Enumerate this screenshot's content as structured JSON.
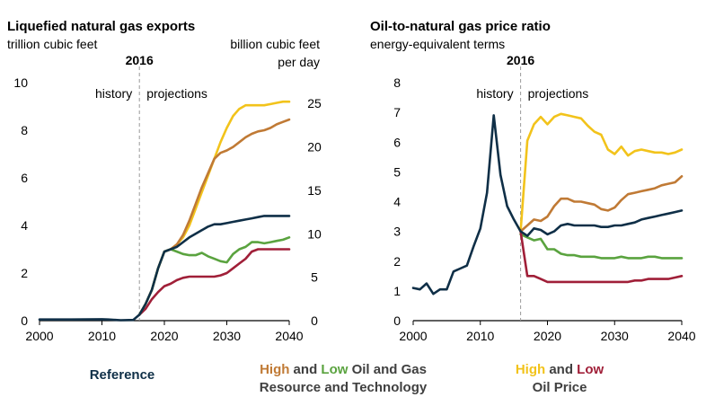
{
  "colors": {
    "reference": "#0f2f47",
    "high_resource": "#c07a35",
    "low_resource": "#5aa33f",
    "high_price": "#f2c31b",
    "low_price": "#a01f38",
    "divider": "#9a9a9a",
    "axis": "#000000"
  },
  "legend": {
    "reference": "Reference",
    "resource_high": "High",
    "resource_and": " and ",
    "resource_low": "Low",
    "resource_rest": " Oil and Gas",
    "resource_line2": "Resource and Technology",
    "price_high": "High",
    "price_and": " and ",
    "price_low": "Low",
    "price_line2": "Oil Price"
  },
  "chart_data": [
    {
      "type": "line",
      "title": "Liquefied natural gas exports",
      "ylabel": "trillion cubic feet",
      "ylabel_right": [
        "billion cubic feet",
        "per day"
      ],
      "x_ticks": [
        2000,
        2010,
        2020,
        2030,
        2040
      ],
      "xlim": [
        2000,
        2040
      ],
      "ylim": [
        0,
        10
      ],
      "y_ticks": [
        0,
        2,
        4,
        6,
        8,
        10
      ],
      "ylim_right": [
        0,
        27.4
      ],
      "y_ticks_right": [
        0,
        5,
        10,
        15,
        20,
        25
      ],
      "divider": {
        "year": 2016,
        "label": "2016",
        "left_label": "history",
        "right_label": "projections"
      },
      "series": [
        {
          "name": "Reference",
          "key": "reference",
          "x": [
            2000,
            2005,
            2010,
            2011,
            2013,
            2015,
            2016,
            2017,
            2018,
            2019,
            2020,
            2021,
            2022,
            2023,
            2024,
            2025,
            2026,
            2027,
            2028,
            2029,
            2030,
            2031,
            2032,
            2033,
            2034,
            2035,
            2036,
            2037,
            2038,
            2039,
            2040
          ],
          "y": [
            0.05,
            0.05,
            0.06,
            0.05,
            0.02,
            0.03,
            0.25,
            0.7,
            1.3,
            2.2,
            2.9,
            3.0,
            3.1,
            3.3,
            3.5,
            3.65,
            3.8,
            3.95,
            4.05,
            4.05,
            4.1,
            4.15,
            4.2,
            4.25,
            4.3,
            4.35,
            4.4,
            4.4,
            4.4,
            4.4,
            4.4
          ]
        },
        {
          "name": "High Oil and Gas Resource and Technology",
          "key": "high_resource",
          "x": [
            2016,
            2017,
            2018,
            2019,
            2020,
            2021,
            2022,
            2023,
            2024,
            2025,
            2026,
            2027,
            2028,
            2029,
            2030,
            2031,
            2032,
            2033,
            2034,
            2035,
            2036,
            2037,
            2038,
            2039,
            2040
          ],
          "y": [
            0.25,
            0.7,
            1.3,
            2.2,
            2.9,
            3.0,
            3.2,
            3.6,
            4.2,
            4.9,
            5.6,
            6.2,
            6.8,
            7.05,
            7.15,
            7.3,
            7.5,
            7.7,
            7.85,
            7.95,
            8.0,
            8.1,
            8.25,
            8.35,
            8.45
          ]
        },
        {
          "name": "Low Oil and Gas Resource and Technology",
          "key": "low_resource",
          "x": [
            2016,
            2017,
            2018,
            2019,
            2020,
            2021,
            2022,
            2023,
            2024,
            2025,
            2026,
            2027,
            2028,
            2029,
            2030,
            2031,
            2032,
            2033,
            2034,
            2035,
            2036,
            2037,
            2038,
            2039,
            2040
          ],
          "y": [
            0.25,
            0.7,
            1.3,
            2.2,
            2.9,
            3.0,
            2.9,
            2.8,
            2.75,
            2.75,
            2.85,
            2.7,
            2.6,
            2.5,
            2.45,
            2.8,
            3.0,
            3.1,
            3.3,
            3.3,
            3.25,
            3.3,
            3.35,
            3.4,
            3.5
          ]
        },
        {
          "name": "High Oil Price",
          "key": "high_price",
          "x": [
            2016,
            2017,
            2018,
            2019,
            2020,
            2021,
            2022,
            2023,
            2024,
            2025,
            2026,
            2027,
            2028,
            2029,
            2030,
            2031,
            2032,
            2033,
            2034,
            2035,
            2036,
            2037,
            2038,
            2039,
            2040
          ],
          "y": [
            0.25,
            0.7,
            1.3,
            2.2,
            2.9,
            3.0,
            3.2,
            3.5,
            4.0,
            4.7,
            5.4,
            6.1,
            6.8,
            7.5,
            8.1,
            8.6,
            8.9,
            9.05,
            9.05,
            9.05,
            9.05,
            9.1,
            9.15,
            9.2,
            9.2
          ]
        },
        {
          "name": "Low Oil Price",
          "key": "low_price",
          "x": [
            2016,
            2017,
            2018,
            2019,
            2020,
            2021,
            2022,
            2023,
            2024,
            2025,
            2026,
            2027,
            2028,
            2029,
            2030,
            2031,
            2032,
            2033,
            2034,
            2035,
            2036,
            2037,
            2038,
            2039,
            2040
          ],
          "y": [
            0.25,
            0.5,
            0.9,
            1.2,
            1.45,
            1.55,
            1.7,
            1.8,
            1.85,
            1.85,
            1.85,
            1.85,
            1.85,
            1.9,
            2.0,
            2.2,
            2.4,
            2.6,
            2.9,
            3.0,
            3.0,
            3.0,
            3.0,
            3.0,
            3.0
          ]
        }
      ]
    },
    {
      "type": "line",
      "title": "Oil-to-natural gas price ratio",
      "ylabel": "energy-equivalent terms",
      "x_ticks": [
        2000,
        2010,
        2020,
        2030,
        2040
      ],
      "xlim": [
        2000,
        2040
      ],
      "ylim": [
        0,
        8
      ],
      "y_ticks": [
        0,
        1,
        2,
        3,
        4,
        5,
        6,
        7,
        8
      ],
      "divider": {
        "year": 2016,
        "label": "2016",
        "left_label": "history",
        "right_label": "projections"
      },
      "series": [
        {
          "name": "Reference",
          "key": "reference",
          "x": [
            2000,
            2001,
            2002,
            2003,
            2004,
            2005,
            2006,
            2007,
            2008,
            2009,
            2010,
            2011,
            2012,
            2013,
            2014,
            2015,
            2016,
            2017,
            2018,
            2019,
            2020,
            2021,
            2022,
            2023,
            2024,
            2025,
            2026,
            2027,
            2028,
            2029,
            2030,
            2031,
            2032,
            2033,
            2034,
            2035,
            2036,
            2037,
            2038,
            2039,
            2040
          ],
          "y": [
            1.1,
            1.05,
            1.25,
            0.9,
            1.05,
            1.05,
            1.65,
            1.75,
            1.85,
            2.5,
            3.1,
            4.3,
            6.9,
            4.9,
            3.85,
            3.4,
            3.0,
            2.85,
            3.1,
            3.05,
            2.9,
            3.0,
            3.2,
            3.25,
            3.2,
            3.2,
            3.2,
            3.2,
            3.15,
            3.15,
            3.2,
            3.2,
            3.25,
            3.3,
            3.4,
            3.45,
            3.5,
            3.55,
            3.6,
            3.65,
            3.7
          ]
        },
        {
          "name": "High Oil and Gas Resource and Technology",
          "key": "high_resource",
          "x": [
            2016,
            2017,
            2018,
            2019,
            2020,
            2021,
            2022,
            2023,
            2024,
            2025,
            2026,
            2027,
            2028,
            2029,
            2030,
            2031,
            2032,
            2033,
            2034,
            2035,
            2036,
            2037,
            2038,
            2039,
            2040
          ],
          "y": [
            3.0,
            3.2,
            3.4,
            3.35,
            3.5,
            3.85,
            4.1,
            4.1,
            4.0,
            4.0,
            3.95,
            3.9,
            3.75,
            3.7,
            3.8,
            4.05,
            4.25,
            4.3,
            4.35,
            4.4,
            4.45,
            4.55,
            4.6,
            4.65,
            4.85
          ]
        },
        {
          "name": "Low Oil and Gas Resource and Technology",
          "key": "low_resource",
          "x": [
            2016,
            2017,
            2018,
            2019,
            2020,
            2021,
            2022,
            2023,
            2024,
            2025,
            2026,
            2027,
            2028,
            2029,
            2030,
            2031,
            2032,
            2033,
            2034,
            2035,
            2036,
            2037,
            2038,
            2039,
            2040
          ],
          "y": [
            2.9,
            2.8,
            2.7,
            2.75,
            2.4,
            2.4,
            2.25,
            2.2,
            2.2,
            2.15,
            2.15,
            2.15,
            2.1,
            2.1,
            2.1,
            2.15,
            2.1,
            2.1,
            2.1,
            2.15,
            2.15,
            2.1,
            2.1,
            2.1,
            2.1
          ]
        },
        {
          "name": "High Oil Price",
          "key": "high_price",
          "x": [
            2016,
            2017,
            2018,
            2019,
            2020,
            2021,
            2022,
            2023,
            2024,
            2025,
            2026,
            2027,
            2028,
            2029,
            2030,
            2031,
            2032,
            2033,
            2034,
            2035,
            2036,
            2037,
            2038,
            2039,
            2040
          ],
          "y": [
            3.0,
            6.05,
            6.6,
            6.85,
            6.6,
            6.85,
            6.95,
            6.9,
            6.85,
            6.8,
            6.55,
            6.35,
            6.25,
            5.75,
            5.6,
            5.85,
            5.55,
            5.7,
            5.75,
            5.7,
            5.65,
            5.65,
            5.6,
            5.65,
            5.75
          ]
        },
        {
          "name": "Low Oil Price",
          "key": "low_price",
          "x": [
            2016,
            2017,
            2018,
            2019,
            2020,
            2021,
            2022,
            2023,
            2024,
            2025,
            2026,
            2027,
            2028,
            2029,
            2030,
            2031,
            2032,
            2033,
            2034,
            2035,
            2036,
            2037,
            2038,
            2039,
            2040
          ],
          "y": [
            3.0,
            1.5,
            1.5,
            1.4,
            1.3,
            1.3,
            1.3,
            1.3,
            1.3,
            1.3,
            1.3,
            1.3,
            1.3,
            1.3,
            1.3,
            1.3,
            1.3,
            1.35,
            1.35,
            1.4,
            1.4,
            1.4,
            1.4,
            1.45,
            1.5
          ]
        }
      ]
    }
  ]
}
